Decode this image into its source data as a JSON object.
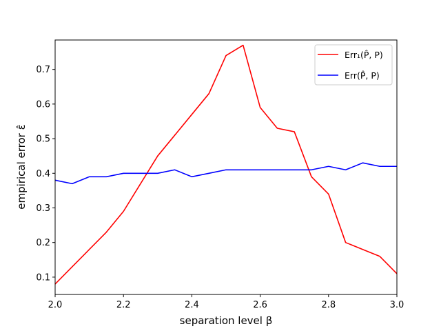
{
  "chart_data": {
    "type": "line",
    "xlabel": "separation level β",
    "ylabel": "empirical error ε̂",
    "xlim": [
      2.0,
      3.0
    ],
    "ylim": [
      0.05,
      0.785
    ],
    "x_ticks": [
      "2.0",
      "2.2",
      "2.4",
      "2.6",
      "2.8",
      "3.0"
    ],
    "y_ticks": [
      "0.1",
      "0.2",
      "0.3",
      "0.4",
      "0.5",
      "0.6",
      "0.7"
    ],
    "grid": false,
    "legend_position": "top-right",
    "x": [
      2.0,
      2.05,
      2.1,
      2.15,
      2.2,
      2.25,
      2.3,
      2.35,
      2.4,
      2.45,
      2.5,
      2.55,
      2.6,
      2.65,
      2.7,
      2.75,
      2.8,
      2.85,
      2.9,
      2.95,
      3.0
    ],
    "series": [
      {
        "name": "Err₁(P̂, P)",
        "color": "#ff0000",
        "values": [
          0.08,
          0.13,
          0.18,
          0.23,
          0.29,
          0.37,
          0.45,
          0.51,
          0.57,
          0.63,
          0.74,
          0.77,
          0.59,
          0.53,
          0.52,
          0.39,
          0.34,
          0.2,
          0.18,
          0.16,
          0.11
        ]
      },
      {
        "name": "Err(P̂, P)",
        "color": "#0000ff",
        "values": [
          0.38,
          0.37,
          0.39,
          0.39,
          0.4,
          0.4,
          0.4,
          0.41,
          0.39,
          0.4,
          0.41,
          0.41,
          0.41,
          0.41,
          0.41,
          0.41,
          0.42,
          0.41,
          0.43,
          0.42,
          0.42
        ]
      }
    ]
  }
}
